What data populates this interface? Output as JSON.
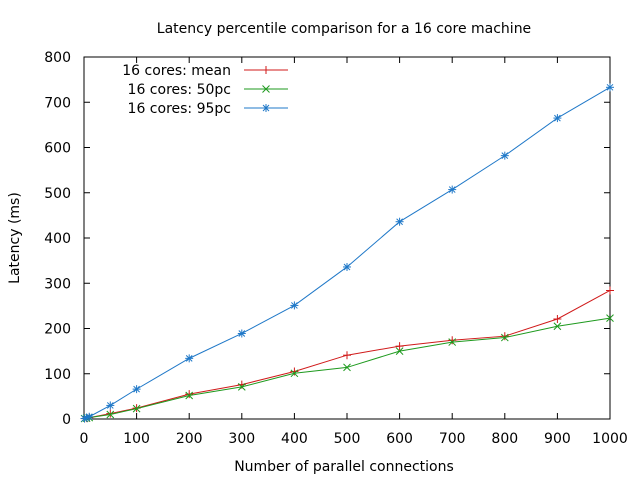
{
  "chart_data": {
    "type": "line",
    "title": "Latency percentile comparison for a 16 core machine",
    "xlabel": "Number of parallel connections",
    "ylabel": "Latency (ms)",
    "xlim": [
      0,
      1000
    ],
    "ylim": [
      0,
      800
    ],
    "xticks": [
      0,
      100,
      200,
      300,
      400,
      500,
      600,
      700,
      800,
      900,
      1000
    ],
    "yticks": [
      0,
      100,
      200,
      300,
      400,
      500,
      600,
      700,
      800
    ],
    "grid": false,
    "legend_position": "top-left",
    "series": [
      {
        "name": "16 cores: mean",
        "color": "#d01a1a",
        "marker": "plus",
        "x": [
          1,
          5,
          10,
          50,
          100,
          200,
          300,
          400,
          500,
          600,
          700,
          800,
          900,
          1000
        ],
        "y": [
          1,
          2,
          3,
          12,
          24,
          55,
          76,
          105,
          141,
          161,
          174,
          183,
          221,
          284
        ]
      },
      {
        "name": "16 cores: 50pc",
        "color": "#1e9a1e",
        "marker": "cross",
        "x": [
          1,
          5,
          10,
          50,
          100,
          200,
          300,
          400,
          500,
          600,
          700,
          800,
          900,
          1000
        ],
        "y": [
          1,
          2,
          3,
          10,
          23,
          52,
          71,
          101,
          114,
          150,
          170,
          180,
          205,
          223
        ]
      },
      {
        "name": "16 cores: 95pc",
        "color": "#1f78c8",
        "marker": "star",
        "x": [
          1,
          5,
          10,
          50,
          100,
          200,
          300,
          400,
          500,
          600,
          700,
          800,
          900,
          1000
        ],
        "y": [
          1,
          3,
          5,
          30,
          66,
          134,
          189,
          251,
          336,
          436,
          507,
          582,
          665,
          733
        ]
      }
    ]
  }
}
